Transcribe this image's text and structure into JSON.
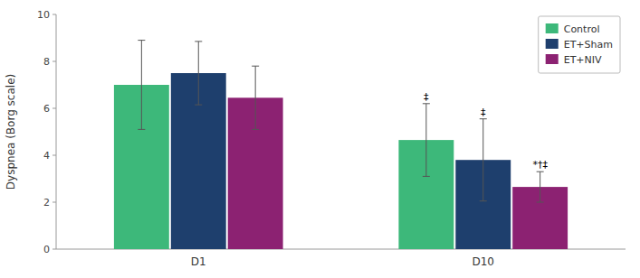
{
  "chart_data": {
    "type": "bar",
    "categories": [
      "D1",
      "D10"
    ],
    "series": [
      {
        "name": "Control",
        "color": "#3db87a",
        "values": [
          7.0,
          4.65
        ],
        "errors": [
          1.9,
          1.55
        ]
      },
      {
        "name": "ET+Sham",
        "color": "#1e3f6d",
        "values": [
          7.5,
          3.8
        ],
        "errors": [
          1.35,
          1.75
        ]
      },
      {
        "name": "ET+NIV",
        "color": "#8c2272",
        "values": [
          6.45,
          2.65
        ],
        "errors": [
          1.35,
          0.65
        ]
      }
    ],
    "annotations": [
      {
        "text": "‡",
        "category": "D10",
        "series": "Control"
      },
      {
        "text": "‡",
        "category": "D10",
        "series": "ET+Sham"
      },
      {
        "text": "*†‡",
        "category": "D10",
        "series": "ET+NIV"
      }
    ],
    "y_label": "Dyspnea (Borg scale)",
    "ylim": [
      0,
      10
    ],
    "yticks": [
      0,
      2,
      4,
      6,
      8,
      10
    ],
    "grid": false,
    "legend": "upper right"
  }
}
